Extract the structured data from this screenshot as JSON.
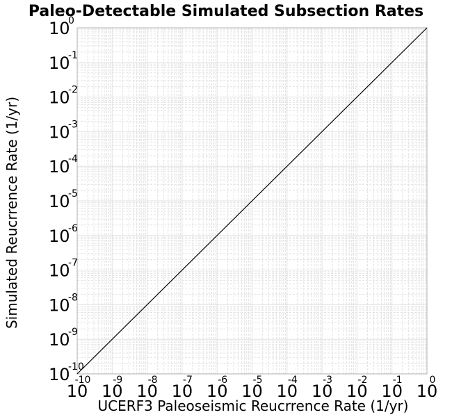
{
  "chart_data": {
    "type": "line",
    "title": "Paleo-Detectable Simulated Subsection Rates",
    "xlabel": "UCERF3 Paleoseismic Reucrrence Rate (1/yr)",
    "ylabel": "Simulated Reucrrence Rate (1/yr)",
    "xscale": "log",
    "yscale": "log",
    "xlim": [
      1e-10,
      1
    ],
    "ylim": [
      1e-10,
      1
    ],
    "grid": true,
    "tick_base": "10",
    "x_ticks": [
      {
        "base": "10",
        "exp": "-10"
      },
      {
        "base": "10",
        "exp": "-9"
      },
      {
        "base": "10",
        "exp": "-8"
      },
      {
        "base": "10",
        "exp": "-7"
      },
      {
        "base": "10",
        "exp": "-6"
      },
      {
        "base": "10",
        "exp": "-5"
      },
      {
        "base": "10",
        "exp": "-4"
      },
      {
        "base": "10",
        "exp": "-3"
      },
      {
        "base": "10",
        "exp": "-2"
      },
      {
        "base": "10",
        "exp": "-1"
      },
      {
        "base": "10",
        "exp": "0"
      }
    ],
    "y_ticks": [
      {
        "base": "10",
        "exp": "-10"
      },
      {
        "base": "10",
        "exp": "-9"
      },
      {
        "base": "10",
        "exp": "-8"
      },
      {
        "base": "10",
        "exp": "-7"
      },
      {
        "base": "10",
        "exp": "-6"
      },
      {
        "base": "10",
        "exp": "-5"
      },
      {
        "base": "10",
        "exp": "-4"
      },
      {
        "base": "10",
        "exp": "-3"
      },
      {
        "base": "10",
        "exp": "-2"
      },
      {
        "base": "10",
        "exp": "-1"
      },
      {
        "base": "10",
        "exp": "0"
      }
    ],
    "series": [
      {
        "x": [
          1e-10,
          1
        ],
        "y": [
          1e-10,
          1
        ],
        "color": "#000000"
      }
    ],
    "colors": {
      "grid": "#e2e2e2",
      "frame": "#b0b0b0",
      "line": "#000000"
    }
  }
}
